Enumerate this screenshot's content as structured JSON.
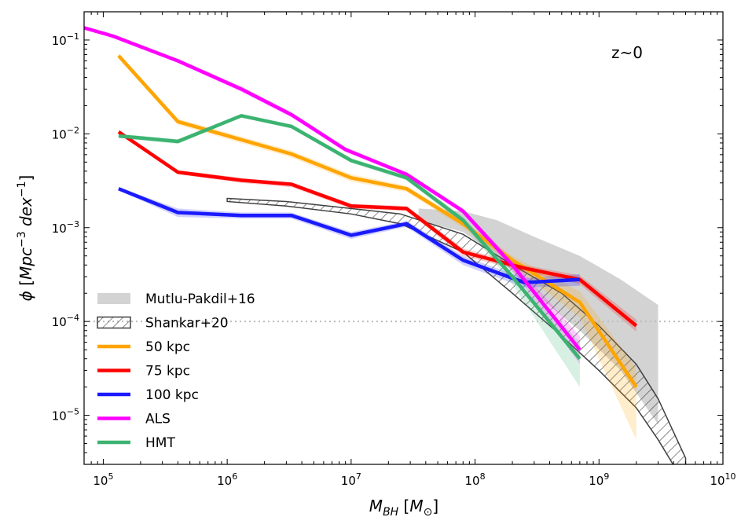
{
  "chart_data": {
    "type": "line",
    "xscale": "log",
    "yscale": "log",
    "xlim": [
      70000,
      10000000000
    ],
    "ylim": [
      3e-06,
      0.2
    ],
    "xlabel": "M_BH [M_⊙]",
    "ylabel": "ϕ [Mpc^-3 dex^-1]",
    "annotation": "z~0",
    "legend_position": "lower-left",
    "reference_line": {
      "y": 0.0001,
      "style": "dotted",
      "color": "#bbbbbb"
    },
    "x_ticks": [
      {
        "value": 100000,
        "base": "10",
        "exp": "5"
      },
      {
        "value": 1000000,
        "base": "10",
        "exp": "6"
      },
      {
        "value": 10000000,
        "base": "10",
        "exp": "7"
      },
      {
        "value": 100000000,
        "base": "10",
        "exp": "8"
      },
      {
        "value": 1000000000,
        "base": "10",
        "exp": "9"
      },
      {
        "value": 10000000000,
        "base": "10",
        "exp": "10"
      }
    ],
    "y_ticks": [
      {
        "value": 1e-05,
        "base": "10",
        "exp": "−5"
      },
      {
        "value": 0.0001,
        "base": "10",
        "exp": "−4"
      },
      {
        "value": 0.001,
        "base": "10",
        "exp": "−3"
      },
      {
        "value": 0.01,
        "base": "10",
        "exp": "−2"
      },
      {
        "value": 0.1,
        "base": "10",
        "exp": "−1"
      }
    ],
    "bands": [
      {
        "name": "Mutlu-Pakdil+16",
        "style": "fill",
        "color": "#d3d3d3",
        "x": [
          35000000,
          80000000,
          150000000,
          300000000,
          700000000,
          1500000000,
          3000000000
        ],
        "upper": [
          0.0016,
          0.0015,
          0.0012,
          0.0008,
          0.0005,
          0.00028,
          0.00015
        ],
        "lower": [
          0.0012,
          0.0009,
          0.0005,
          0.0002,
          8e-05,
          3e-05,
          8e-06
        ]
      },
      {
        "name": "Shankar+20",
        "style": "hatch",
        "color": "#404040",
        "x": [
          1000000,
          3000000,
          10000000,
          25000000,
          80000000,
          200000000,
          500000000,
          1000000000,
          2000000000,
          3000000000,
          5000000000
        ],
        "upper": [
          0.00205,
          0.0019,
          0.0016,
          0.0014,
          0.00085,
          0.0004,
          0.0002,
          9e-05,
          3.5e-05,
          1.5e-05,
          3.5e-06
        ],
        "lower": [
          0.0019,
          0.0017,
          0.0014,
          0.0011,
          0.00055,
          0.0002,
          7e-05,
          3e-05,
          1.2e-05,
          5.5e-06,
          1.8e-06
        ]
      }
    ],
    "series": [
      {
        "name": "50 kpc",
        "color": "#ffa500",
        "x": [
          133000,
          400000,
          3300000,
          10000000,
          28000000,
          80000000,
          200000000,
          700000000,
          2000000000
        ],
        "values": [
          0.068,
          0.0135,
          0.0061,
          0.0034,
          0.0026,
          0.0011,
          0.00045,
          0.00016,
          2e-05
        ],
        "shade_upper": [
          0.072,
          0.0145,
          0.0066,
          0.0037,
          0.0028,
          0.0012,
          0.0005,
          0.00021,
          3.2e-05
        ],
        "shade_lower": [
          0.064,
          0.0125,
          0.0056,
          0.0031,
          0.0024,
          0.001,
          0.0004,
          0.00011,
          5.5e-06
        ]
      },
      {
        "name": "75 kpc",
        "color": "#ff0000",
        "x": [
          133000,
          400000,
          1300000,
          3300000,
          10000000,
          28000000,
          80000000,
          250000000,
          700000000,
          2000000000
        ],
        "values": [
          0.0105,
          0.0039,
          0.0032,
          0.0029,
          0.0017,
          0.0016,
          0.00055,
          0.00037,
          0.00028,
          9e-05
        ],
        "shade_upper": [
          0.011,
          0.0041,
          0.0034,
          0.003,
          0.0018,
          0.0017,
          0.0006,
          0.0004,
          0.00031,
          0.000105
        ],
        "shade_lower": [
          0.01,
          0.0037,
          0.003,
          0.0027,
          0.0016,
          0.0015,
          0.0005,
          0.00034,
          0.00025,
          7.8e-05
        ]
      },
      {
        "name": "100 kpc",
        "color": "#1a1aff",
        "x": [
          133000,
          400000,
          1300000,
          3300000,
          10000000,
          28000000,
          80000000,
          250000000,
          700000000
        ],
        "values": [
          0.0026,
          0.00145,
          0.00135,
          0.00135,
          0.00083,
          0.0011,
          0.00045,
          0.00026,
          0.00028
        ],
        "shade_upper": [
          0.0027,
          0.0016,
          0.00145,
          0.00145,
          0.0009,
          0.00118,
          0.0005,
          0.00029,
          0.00032
        ],
        "shade_lower": [
          0.0025,
          0.0013,
          0.00125,
          0.00125,
          0.00076,
          0.00102,
          0.0004,
          0.00023,
          0.00024
        ]
      },
      {
        "name": "ALS",
        "color": "#ff00ff",
        "x": [
          70000,
          120000,
          400000,
          1300000,
          3300000,
          9000000,
          28000000,
          80000000,
          200000000,
          700000000
        ],
        "values": [
          0.135,
          0.11,
          0.06,
          0.03,
          0.016,
          0.0068,
          0.0037,
          0.0015,
          0.0004,
          5e-05
        ],
        "shade_upper": [
          0.14,
          0.115,
          0.063,
          0.032,
          0.017,
          0.0072,
          0.0039,
          0.0016,
          0.00045,
          7e-05
        ],
        "shade_lower": [
          0.13,
          0.105,
          0.057,
          0.028,
          0.015,
          0.0064,
          0.0035,
          0.0014,
          0.00035,
          3.5e-05
        ]
      },
      {
        "name": "HMT",
        "color": "#3cb371",
        "x": [
          133000,
          400000,
          1300000,
          3300000,
          10000000,
          28000000,
          80000000,
          200000000,
          700000000
        ],
        "values": [
          0.0095,
          0.0083,
          0.0156,
          0.012,
          0.0052,
          0.0034,
          0.0012,
          0.0003,
          4e-05
        ],
        "shade_upper": [
          0.01,
          0.0088,
          0.0162,
          0.0126,
          0.0055,
          0.0036,
          0.0013,
          0.00035,
          6e-05
        ],
        "shade_lower": [
          0.009,
          0.0078,
          0.015,
          0.0114,
          0.0049,
          0.0032,
          0.0011,
          0.00025,
          2e-05
        ]
      }
    ],
    "legend": [
      {
        "label": "Mutlu-Pakdil+16",
        "kind": "fill",
        "color": "#d3d3d3"
      },
      {
        "label": "Shankar+20",
        "kind": "hatch",
        "color": "#404040"
      },
      {
        "label": "50 kpc",
        "kind": "line",
        "color": "#ffa500"
      },
      {
        "label": "75 kpc",
        "kind": "line",
        "color": "#ff0000"
      },
      {
        "label": "100 kpc",
        "kind": "line",
        "color": "#1a1aff"
      },
      {
        "label": "ALS",
        "kind": "line",
        "color": "#ff00ff"
      },
      {
        "label": "HMT",
        "kind": "line",
        "color": "#3cb371"
      }
    ]
  }
}
